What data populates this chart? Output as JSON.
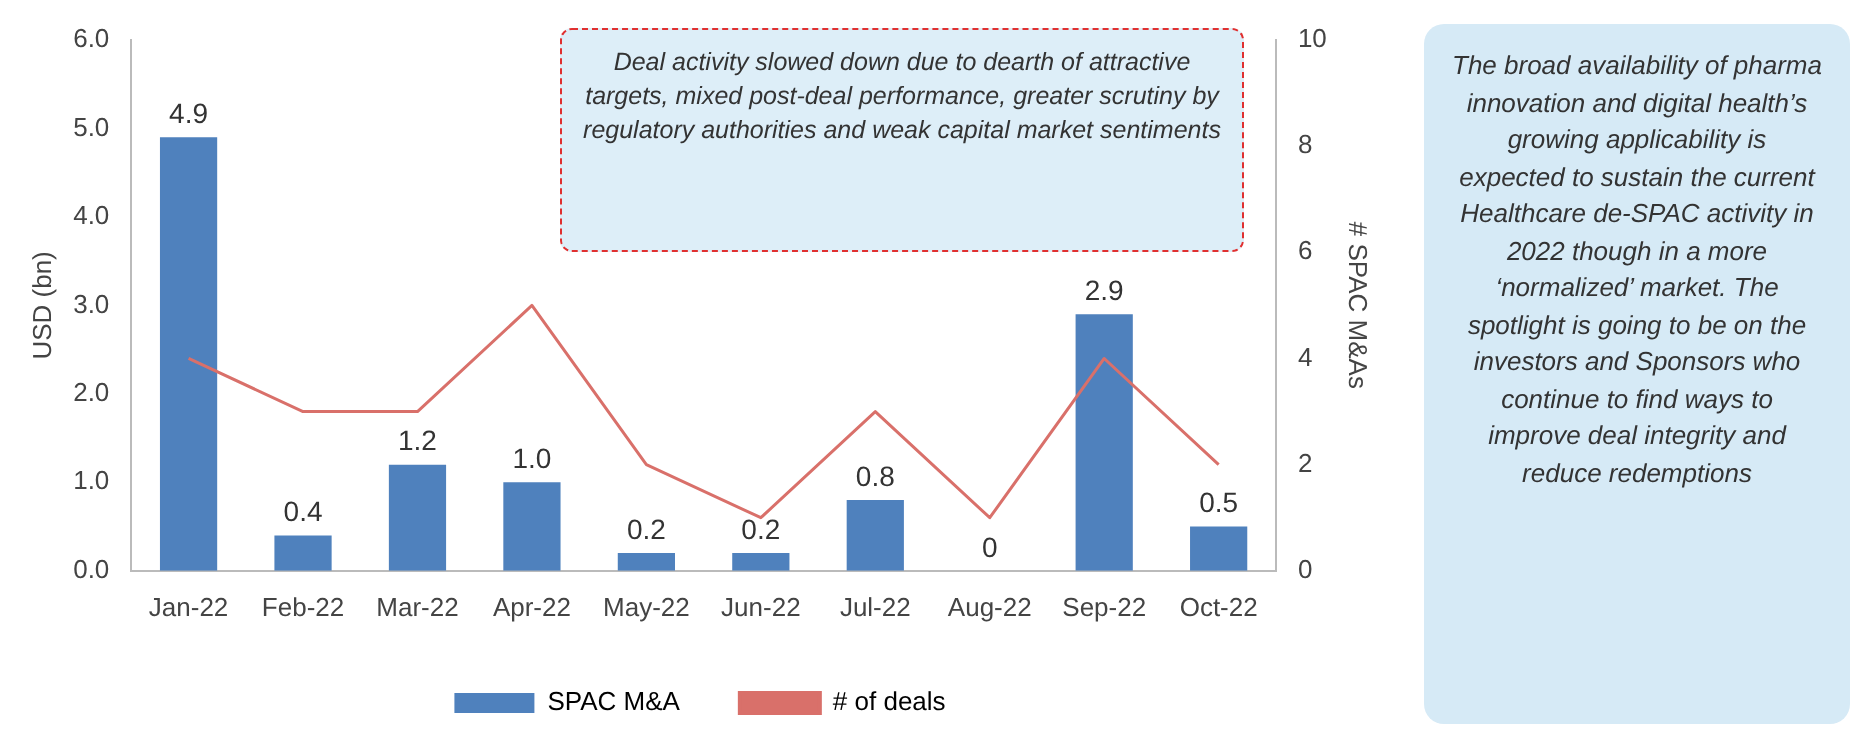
{
  "chart_data": {
    "type": "bar",
    "ylabel": "USD (bn)",
    "y2label": "# SPAC M&As",
    "categories": [
      "Jan-22",
      "Feb-22",
      "Mar-22",
      "Apr-22",
      "May-22",
      "Jun-22",
      "Jul-22",
      "Aug-22",
      "Sep-22",
      "Oct-22"
    ],
    "series": [
      {
        "name": "SPAC M&A",
        "color": "#4f81bd",
        "values": [
          4.9,
          0.4,
          1.2,
          1.0,
          0.2,
          0.2,
          0.8,
          0,
          2.9,
          0.5
        ],
        "value_labels": [
          "4.9",
          "0.4",
          "1.2",
          "1.0",
          "0.2",
          "0.2",
          "0.8",
          "0",
          "2.9",
          "0.5"
        ]
      },
      {
        "name": "# of deals",
        "type": "line",
        "axis": "y2",
        "color": "#d9706a",
        "values": [
          4,
          3,
          3,
          5,
          2,
          1,
          3,
          1,
          4,
          2
        ]
      }
    ],
    "ylim": [
      0,
      6
    ],
    "yticks": [
      {
        "value": 0,
        "label": "0.0"
      },
      {
        "value": 1,
        "label": "1.0"
      },
      {
        "value": 2,
        "label": "2.0"
      },
      {
        "value": 3,
        "label": "3.0"
      },
      {
        "value": 4,
        "label": "4.0"
      },
      {
        "value": 5,
        "label": "5.0"
      },
      {
        "value": 6,
        "label": "6.0"
      }
    ],
    "y2lim": [
      0,
      10
    ],
    "y2ticks": [
      0,
      2,
      4,
      6,
      8,
      10
    ],
    "grid": false,
    "legend": "bottom",
    "marker": "none",
    "annotations": [
      "Deal activity slowed down due to dearth of attractive targets, mixed post-deal performance, greater scrutiny by regulatory authorities and weak capital market sentiments",
      "The broad availability of pharma innovation and digital health’s growing applicability is expected to sustain the current Healthcare de-SPAC activity in 2022 though in a more ‘normalized’ market. The spotlight is going to be on the investors and Sponsors who continue to find ways to improve deal integrity and reduce redemptions"
    ]
  }
}
